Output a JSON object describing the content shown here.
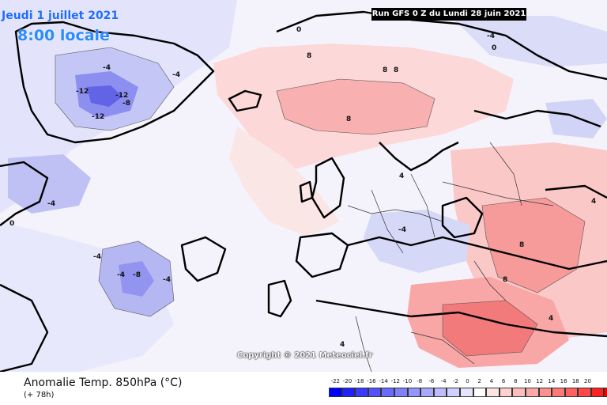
{
  "header": {
    "date": "Jeudi 1 juillet 2021",
    "local_time": "8:00 locale",
    "run": "Run GFS 0 Z du Lundi 28 juin 2021"
  },
  "footer": {
    "title": "Anomalie Temp. 850hPa (°C)",
    "lead": "(+ 78h)",
    "copyright": "Copyright © 2021 Meteociel.fr"
  },
  "legend": {
    "ticks": [
      "-22",
      "-20",
      "-18",
      "-16",
      "-14",
      "-12",
      "-10",
      "-8",
      "-6",
      "-4",
      "-2",
      "0",
      "2",
      "4",
      "6",
      "8",
      "10",
      "12",
      "14",
      "16",
      "18",
      "20"
    ],
    "colors": [
      "#0000ff",
      "#2020ff",
      "#3a3aff",
      "#5252ff",
      "#6a6aff",
      "#8080ff",
      "#9595ff",
      "#a8a8ff",
      "#bcbcff",
      "#d0d0ff",
      "#e4e4ff",
      "#ffffff",
      "#ffe4e4",
      "#ffd0d0",
      "#ffbcbc",
      "#ffa8a8",
      "#ff9090",
      "#ff7878",
      "#ff6060",
      "#ff4848",
      "#ff2020",
      "#ff0000"
    ]
  },
  "contour_labels": [
    {
      "text": "-4",
      "id": "lbl-1"
    },
    {
      "text": "-4",
      "id": "lbl-2"
    },
    {
      "text": "-12",
      "id": "lbl-3"
    },
    {
      "text": "-12",
      "id": "lbl-4"
    },
    {
      "text": "-12",
      "id": "lbl-5"
    },
    {
      "text": "-8",
      "id": "lbl-6"
    },
    {
      "text": "-4",
      "id": "lbl-7"
    },
    {
      "text": "-4",
      "id": "lbl-8"
    },
    {
      "text": "-4",
      "id": "lbl-9"
    },
    {
      "text": "-8",
      "id": "lbl-10"
    },
    {
      "text": "-4",
      "id": "lbl-11"
    },
    {
      "text": "0",
      "id": "lbl-12"
    },
    {
      "text": "8",
      "id": "lbl-13"
    },
    {
      "text": "8",
      "id": "lbl-14"
    },
    {
      "text": "8",
      "id": "lbl-15"
    },
    {
      "text": "8",
      "id": "lbl-16"
    },
    {
      "text": "4",
      "id": "lbl-17"
    },
    {
      "text": "-4",
      "id": "lbl-18"
    },
    {
      "text": "4",
      "id": "lbl-19"
    },
    {
      "text": "8",
      "id": "lbl-20"
    },
    {
      "text": "8",
      "id": "lbl-21"
    },
    {
      "text": "4",
      "id": "lbl-22"
    },
    {
      "text": "-4",
      "id": "lbl-23"
    },
    {
      "text": "0",
      "id": "lbl-24"
    },
    {
      "text": "0",
      "id": "lbl-25"
    },
    {
      "text": "4",
      "id": "lbl-26"
    }
  ]
}
